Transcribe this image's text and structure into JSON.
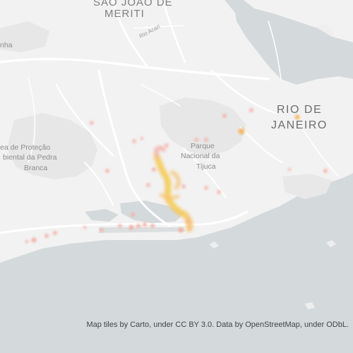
{
  "map": {
    "labels": {
      "sao_joao": "SÃO JOÃO DE",
      "meriti": "MERITI",
      "road_acari": "Rio Acari",
      "nha": "nha",
      "rio": "RIO DE",
      "janeiro": "JANEIRO",
      "protecao_1": "ea de Proteção",
      "protecao_2": "biental da Pedra",
      "protecao_3": "Branca",
      "park_1": "Parque",
      "park_2": "Nacional da",
      "park_3": "Tijuca"
    },
    "colors": {
      "water": "#d4dadc",
      "land": "#f2f2f2",
      "hills": "#e6e6e6",
      "roads": "#ffffff",
      "heat_low": "#f4a9a0",
      "heat_mid": "#f7c06a",
      "heat_high": "#f5d64a"
    },
    "attribution": "Map tiles by Carto, under CC BY 3.0. Data by OpenStreetMap, under ODbL."
  }
}
